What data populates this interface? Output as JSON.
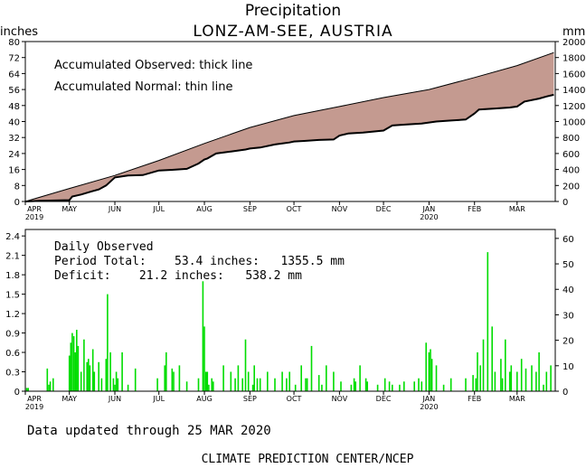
{
  "chart_data": [
    {
      "type": "area",
      "title": "Precipitation",
      "subtitle": "LONZ-AM-SEE, AUSTRIA",
      "ylabel_left": "inches",
      "ylabel_right": "mm",
      "ylim": [
        0,
        80
      ],
      "y_ticks": [
        "0",
        "8",
        "16",
        "24",
        "32",
        "40",
        "48",
        "56",
        "64",
        "72",
        "80"
      ],
      "y2_ticks": [
        "0",
        "200",
        "400",
        "600",
        "800",
        "1000",
        "1200",
        "1400",
        "1600",
        "1800",
        "2000"
      ],
      "x_tick_labels": [
        "APR",
        "MAY",
        "JUN",
        "JUL",
        "AUG",
        "SEP",
        "OCT",
        "NOV",
        "DEC",
        "JAN",
        "FEB",
        "MAR"
      ],
      "x_year_labels": [
        "2019",
        "2020"
      ],
      "annotations": [
        "Accumulated Observed: thick line",
        "Accumulated Normal: thin line"
      ],
      "fill_color": "#c49a90",
      "series": [
        {
          "name": "Accumulated Normal",
          "x": [
            0,
            30,
            61,
            91,
            122,
            153,
            183,
            214,
            244,
            275,
            306,
            335,
            360
          ],
          "values": [
            0,
            6.5,
            13,
            20.5,
            29,
            37,
            43,
            47.5,
            52,
            56,
            62,
            68,
            74.5
          ]
        },
        {
          "name": "Accumulated Observed",
          "x": [
            0,
            10,
            20,
            30,
            32,
            38,
            45,
            50,
            55,
            61,
            70,
            80,
            91,
            100,
            110,
            118,
            122,
            124,
            130,
            140,
            150,
            153,
            160,
            170,
            180,
            183,
            190,
            200,
            210,
            214,
            220,
            230,
            244,
            250,
            260,
            270,
            275,
            280,
            290,
            300,
            306,
            309,
            320,
            330,
            335,
            340,
            350,
            355,
            360
          ],
          "values": [
            0,
            0.3,
            0.5,
            0.7,
            2.5,
            3.5,
            5,
            6,
            8,
            12,
            13,
            13.2,
            15.5,
            15.8,
            16.3,
            19,
            21,
            21.5,
            24,
            25,
            26,
            26.5,
            27,
            28.5,
            29.5,
            30,
            30.3,
            30.8,
            31,
            33,
            34,
            34.5,
            35.5,
            38,
            38.5,
            39,
            39.5,
            40,
            40.5,
            41,
            44,
            46,
            46.5,
            47,
            47.5,
            50,
            51.5,
            52.5,
            53.4
          ]
        }
      ]
    },
    {
      "type": "bar",
      "ylabel": "",
      "ylim": [
        0,
        2.5
      ],
      "y_ticks": [
        "0",
        "0.3",
        "0.6",
        "0.9",
        "1.2",
        "1.5",
        "1.8",
        "2.1",
        "2.4"
      ],
      "y2_ticks": [
        "0",
        "10",
        "20",
        "30",
        "40",
        "50",
        "60"
      ],
      "x_tick_labels": [
        "APR",
        "MAY",
        "JUN",
        "JUL",
        "AUG",
        "SEP",
        "OCT",
        "NOV",
        "DEC",
        "JAN",
        "FEB",
        "MAR"
      ],
      "x_year_labels": [
        "2019",
        "2020"
      ],
      "bar_color": "#00dd00",
      "annotations": {
        "title": "Daily Observed",
        "total": "Period Total:    53.4 inches:   1355.5 mm",
        "deficit": "Deficit:    21.2 inches:   538.2 mm"
      },
      "x": [
        1,
        2,
        15,
        16,
        17,
        19,
        30,
        31,
        32,
        33,
        34,
        35,
        36,
        38,
        40,
        42,
        43,
        44,
        46,
        47,
        50,
        52,
        55,
        56,
        58,
        60,
        61,
        62,
        63,
        66,
        70,
        75,
        90,
        95,
        96,
        100,
        101,
        105,
        110,
        118,
        121,
        122,
        123,
        124,
        125,
        127,
        128,
        135,
        140,
        143,
        145,
        148,
        150,
        152,
        155,
        156,
        158,
        160,
        165,
        170,
        175,
        178,
        180,
        184,
        188,
        191,
        192,
        195,
        200,
        202,
        205,
        210,
        215,
        222,
        224,
        225,
        228,
        232,
        233,
        240,
        245,
        248,
        250,
        255,
        258,
        265,
        268,
        270,
        273,
        275,
        276,
        277,
        280,
        285,
        290,
        300,
        305,
        307,
        308,
        310,
        312,
        315,
        318,
        320,
        324,
        325,
        327,
        330,
        331,
        335,
        338,
        341,
        345,
        348,
        350,
        353,
        355,
        358
      ],
      "values": [
        0.05,
        0.05,
        0.35,
        0.1,
        0.15,
        0.2,
        0.55,
        0.75,
        0.9,
        0.85,
        0.6,
        0.95,
        0.7,
        0.3,
        0.8,
        0.45,
        0.5,
        0.4,
        0.65,
        0.3,
        0.45,
        0.2,
        0.5,
        1.5,
        0.6,
        0.2,
        0.1,
        0.3,
        0.2,
        0.6,
        0.1,
        0.35,
        0.2,
        0.4,
        0.6,
        0.35,
        0.3,
        0.4,
        0.15,
        0.2,
        1.7,
        1.0,
        0.3,
        0.3,
        0.1,
        0.2,
        0.15,
        0.4,
        0.3,
        0.2,
        0.4,
        0.2,
        0.8,
        0.3,
        0.1,
        0.4,
        0.2,
        0.2,
        0.3,
        0.2,
        0.3,
        0.2,
        0.3,
        0.1,
        0.4,
        0.2,
        0.2,
        0.7,
        0.25,
        0.1,
        0.4,
        0.3,
        0.15,
        0.1,
        0.2,
        0.15,
        0.4,
        0.2,
        0.15,
        0.1,
        0.2,
        0.15,
        0.1,
        0.1,
        0.15,
        0.15,
        0.2,
        0.15,
        0.75,
        0.6,
        0.65,
        0.5,
        0.4,
        0.1,
        0.2,
        0.2,
        0.25,
        0.2,
        0.6,
        0.4,
        0.8,
        2.15,
        1.0,
        0.3,
        0.5,
        0.2,
        0.8,
        0.3,
        0.4,
        0.3,
        0.5,
        0.35,
        0.4,
        0.3,
        0.6,
        0.1,
        0.3,
        0.4
      ]
    }
  ],
  "footer": {
    "updated": "Data updated through 25 MAR 2020",
    "credit": "CLIMATE PREDICTION CENTER/NCEP"
  }
}
